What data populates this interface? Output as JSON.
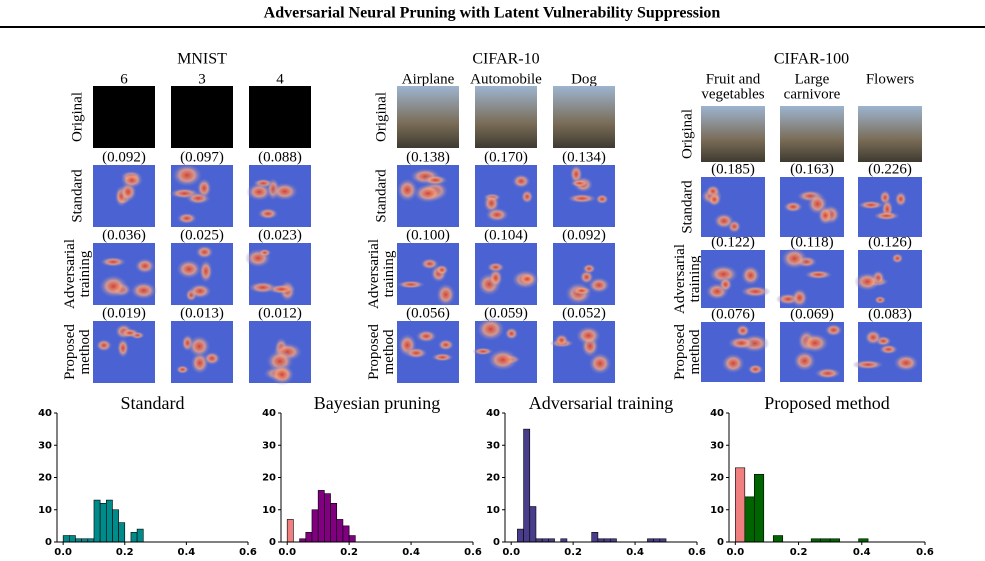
{
  "title": "Adversarial Neural Pruning with Latent Vulnerability Suppression",
  "panels": [
    {
      "dataset": "MNIST",
      "columns": [
        [
          "6"
        ],
        [
          "3"
        ],
        [
          "4"
        ]
      ],
      "rows": [
        {
          "label": [
            "Original"
          ]
        },
        {
          "label": [
            "Standard"
          ],
          "scores": [
            "(0.092)",
            "(0.097)",
            "(0.088)"
          ]
        },
        {
          "label": [
            "Adversarial",
            "training"
          ],
          "scores": [
            "(0.036)",
            "(0.025)",
            "(0.023)"
          ]
        },
        {
          "label": [
            "Proposed",
            "method"
          ],
          "scores": [
            "(0.019)",
            "(0.013)",
            "(0.012)"
          ]
        }
      ]
    },
    {
      "dataset": "CIFAR-10",
      "columns": [
        [
          "Airplane"
        ],
        [
          "Automobile"
        ],
        [
          "Dog"
        ]
      ],
      "rows": [
        {
          "label": [
            "Original"
          ]
        },
        {
          "label": [
            "Standard"
          ],
          "scores": [
            "(0.138)",
            "(0.170)",
            "(0.134)"
          ]
        },
        {
          "label": [
            "Adversarial",
            "training"
          ],
          "scores": [
            "(0.100)",
            "(0.104)",
            "(0.092)"
          ]
        },
        {
          "label": [
            "Proposed",
            "method"
          ],
          "scores": [
            "(0.056)",
            "(0.059)",
            "(0.052)"
          ]
        }
      ]
    },
    {
      "dataset": "CIFAR-100",
      "columns": [
        [
          "Fruit and",
          "vegetables"
        ],
        [
          "Large",
          "carnivore"
        ],
        [
          "Flowers"
        ]
      ],
      "rows": [
        {
          "label": [
            "Original"
          ]
        },
        {
          "label": [
            "Standard"
          ],
          "scores": [
            "(0.185)",
            "(0.163)",
            "(0.226)"
          ]
        },
        {
          "label": [
            "Adversarial",
            "training"
          ],
          "scores": [
            "(0.122)",
            "(0.118)",
            "(0.126)"
          ]
        },
        {
          "label": [
            "Proposed",
            "method"
          ],
          "scores": [
            "(0.076)",
            "(0.069)",
            "(0.083)"
          ]
        }
      ]
    }
  ],
  "chart_data": [
    {
      "type": "histogram",
      "title": "Standard",
      "bins": [
        0,
        0.02,
        0.04,
        0.06,
        0.08,
        0.1,
        0.12,
        0.14,
        0.16,
        0.18,
        0.2,
        0.22,
        0.24,
        0.26
      ],
      "values": [
        2,
        2,
        1,
        1,
        1,
        13,
        12,
        13,
        10,
        6,
        0,
        3,
        4
      ],
      "colors": [
        "#008b8b",
        "#008b8b",
        "#008b8b",
        "#008b8b",
        "#008b8b",
        "#008b8b",
        "#008b8b",
        "#008b8b",
        "#008b8b",
        "#008b8b",
        "#008b8b",
        "#008b8b",
        "#008b8b"
      ],
      "xlim": [
        -0.02,
        0.6
      ],
      "ylim": [
        0,
        40
      ],
      "xticks": [
        {
          "value": 0,
          "label": "0.0"
        },
        0.2,
        0.4,
        0.6
      ],
      "yticks": [
        0,
        10,
        20,
        30,
        40
      ]
    },
    {
      "type": "histogram",
      "title": "Bayesian pruning",
      "bins": [
        0,
        0.02,
        0.04,
        0.06,
        0.08,
        0.1,
        0.12,
        0.14,
        0.16,
        0.18,
        0.2,
        0.22
      ],
      "values": [
        7,
        0,
        1,
        3,
        10,
        16,
        15,
        12,
        7,
        5,
        2
      ],
      "colors": [
        "#f08080",
        "#800080",
        "#800080",
        "#800080",
        "#800080",
        "#800080",
        "#800080",
        "#800080",
        "#800080",
        "#800080",
        "#800080"
      ],
      "xlim": [
        -0.02,
        0.6
      ],
      "ylim": [
        0,
        40
      ],
      "xticks": [
        {
          "value": 0,
          "label": "0.0"
        },
        0.2,
        0.4,
        0.6
      ],
      "yticks": [
        0,
        10,
        20,
        30,
        40
      ]
    },
    {
      "type": "histogram",
      "title": "Adversarial training",
      "bins": [
        0,
        0.02,
        0.04,
        0.06,
        0.08,
        0.1,
        0.12,
        0.14,
        0.16,
        0.18,
        0.2,
        0.22,
        0.24,
        0.26,
        0.28,
        0.3,
        0.32,
        0.34,
        0.36,
        0.38,
        0.4,
        0.42,
        0.44,
        0.46,
        0.48,
        0.5
      ],
      "values": [
        0,
        4,
        35,
        11,
        1,
        1,
        1,
        0,
        1,
        0,
        0,
        0,
        0,
        3,
        1,
        1,
        1,
        0,
        0,
        0,
        0,
        0,
        1,
        1,
        1
      ],
      "colors": [
        "#483d8b",
        "#483d8b",
        "#483d8b",
        "#483d8b",
        "#483d8b",
        "#483d8b",
        "#483d8b",
        "#483d8b",
        "#483d8b",
        "#483d8b",
        "#483d8b",
        "#483d8b",
        "#483d8b",
        "#483d8b",
        "#483d8b",
        "#483d8b",
        "#483d8b",
        "#483d8b",
        "#483d8b",
        "#483d8b",
        "#483d8b",
        "#483d8b",
        "#483d8b",
        "#483d8b",
        "#483d8b"
      ],
      "xlim": [
        -0.02,
        0.6
      ],
      "ylim": [
        0,
        40
      ],
      "xticks": [
        {
          "value": 0,
          "label": "0.0"
        },
        0.2,
        0.4,
        0.6
      ],
      "yticks": [
        0,
        10,
        20,
        30,
        40
      ]
    },
    {
      "type": "histogram",
      "title": "Proposed method",
      "bins": [
        0,
        0.03,
        0.06,
        0.09,
        0.12,
        0.15,
        0.18,
        0.21,
        0.24,
        0.27,
        0.3,
        0.33,
        0.36,
        0.39,
        0.42
      ],
      "values": [
        23,
        14,
        21,
        0,
        2,
        0,
        0,
        0,
        1,
        1,
        1,
        0,
        0,
        1
      ],
      "colors": [
        "#f08080",
        "#006400",
        "#006400",
        "#006400",
        "#006400",
        "#006400",
        "#006400",
        "#006400",
        "#006400",
        "#006400",
        "#006400",
        "#006400",
        "#006400",
        "#006400"
      ],
      "xlim": [
        -0.02,
        0.6
      ],
      "ylim": [
        0,
        40
      ],
      "xticks": [
        {
          "value": 0,
          "label": "0.0"
        },
        0.2,
        0.4,
        0.6
      ],
      "yticks": [
        0,
        10,
        20,
        30,
        40
      ]
    }
  ]
}
